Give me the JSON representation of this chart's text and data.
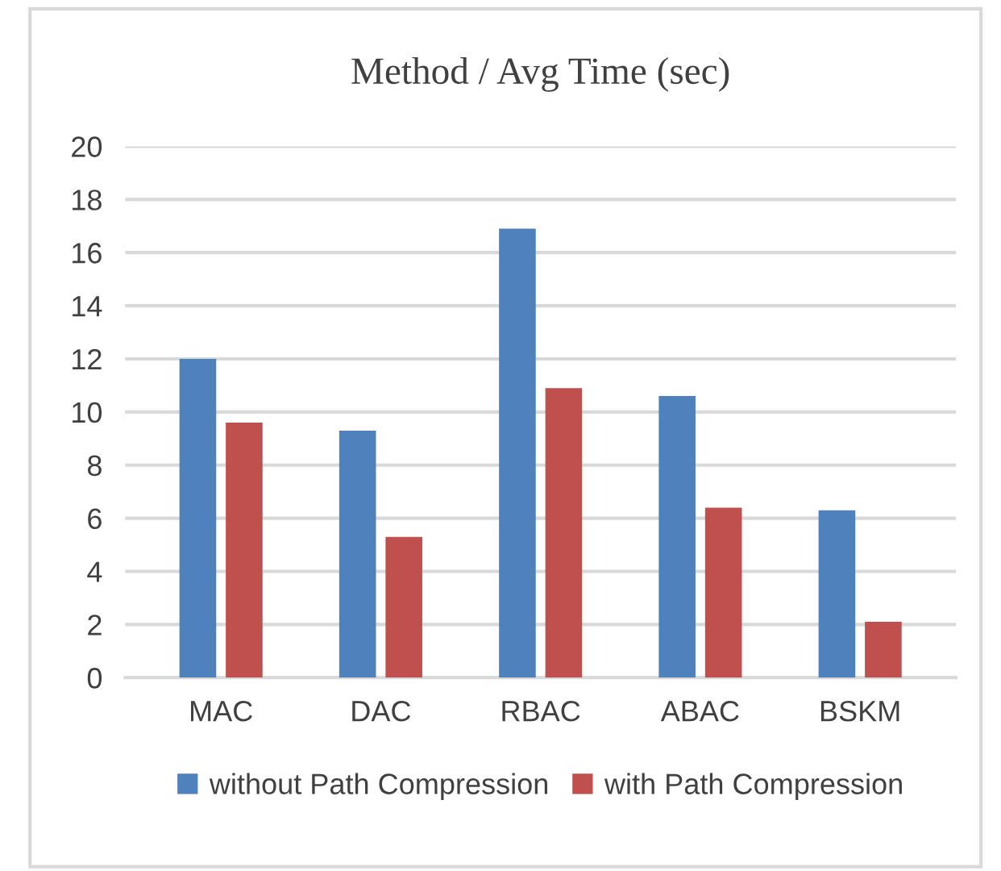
{
  "chart_data": {
    "type": "bar",
    "title": "Method / Avg Time (sec)",
    "categories": [
      "MAC",
      "DAC",
      "RBAC",
      "ABAC",
      "BSKM"
    ],
    "series": [
      {
        "name": "without Path Compression",
        "color": "#4f81bd",
        "values": [
          12.0,
          9.3,
          16.9,
          10.6,
          6.3
        ]
      },
      {
        "name": "with Path Compression",
        "color": "#c0504d",
        "values": [
          9.6,
          5.3,
          10.9,
          6.4,
          2.1
        ]
      }
    ],
    "ylim": [
      0,
      20
    ],
    "yticks": [
      0,
      2,
      4,
      6,
      8,
      10,
      12,
      14,
      16,
      18,
      20
    ],
    "grid": "y",
    "legend": "bottom"
  }
}
